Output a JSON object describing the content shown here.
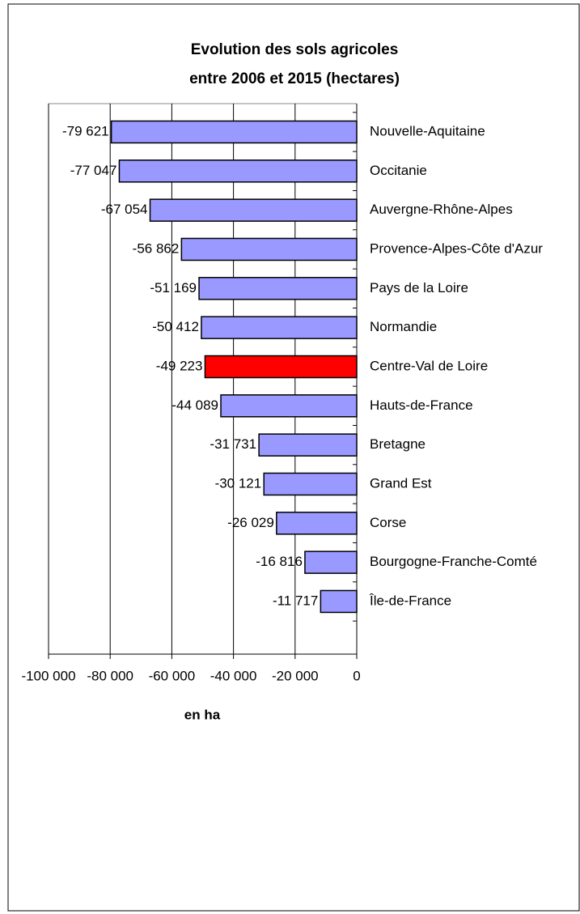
{
  "chart_data": {
    "type": "barh",
    "title": [
      "Evolution  des sols agricoles",
      "entre 2006 et 2015 (hectares)"
    ],
    "x_label": "en ha",
    "categories": [
      "Nouvelle-Aquitaine",
      "Occitanie",
      "Auvergne-Rhône-Alpes",
      "Provence-Alpes-Côte d'Azur",
      "Pays de la Loire",
      "Normandie",
      "Centre-Val de Loire",
      "Hauts-de-France",
      "Bretagne",
      "Grand Est",
      "Corse",
      "Bourgogne-Franche-Comté",
      "Île-de-France"
    ],
    "values": [
      -79621,
      -77047,
      -67054,
      -56862,
      -51169,
      -50412,
      -49223,
      -44089,
      -31731,
      -30121,
      -26029,
      -16816,
      -11717
    ],
    "value_labels": [
      "-79 621",
      "-77 047",
      "-67 054",
      "-56 862",
      "-51 169",
      "-50 412",
      "-49 223",
      "-44 089",
      "-31 731",
      "-30 121",
      "-26 029",
      "-16 816",
      "-11 717"
    ],
    "colors": [
      "#9999ff",
      "#9999ff",
      "#9999ff",
      "#9999ff",
      "#9999ff",
      "#9999ff",
      "#ff0000",
      "#9999ff",
      "#9999ff",
      "#9999ff",
      "#9999ff",
      "#9999ff",
      "#9999ff"
    ],
    "xlim": [
      -100000,
      0
    ],
    "xticks": [
      {
        "value": -100000,
        "label": "-100 000"
      },
      {
        "value": -80000,
        "label": "-80 000"
      },
      {
        "value": -60000,
        "label": "-60 000"
      },
      {
        "value": -40000,
        "label": "-40 000"
      },
      {
        "value": -20000,
        "label": "-20 000"
      },
      0
    ],
    "grid": true
  }
}
